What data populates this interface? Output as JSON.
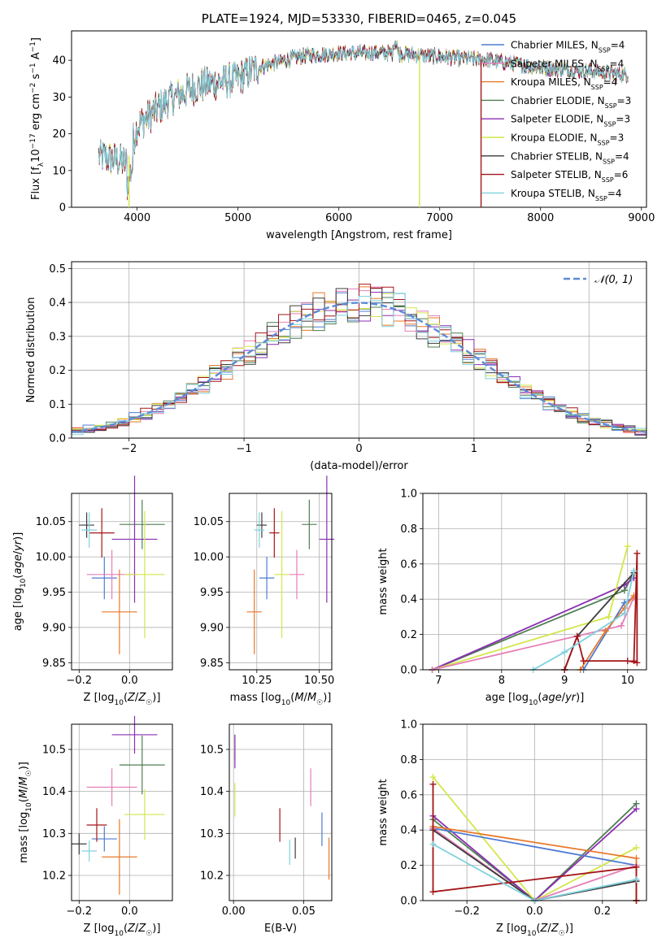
{
  "colors": {
    "Chabrier MILES": "#4f7bd0",
    "Salpeter MILES": "#e57fb8",
    "Kroupa MILES": "#e8782a",
    "Chabrier ELODIE": "#4f7d52",
    "Salpeter ELODIE": "#8b2fb2",
    "Kroupa ELODIE": "#d4e64a",
    "Chabrier STELIB": "#3c3c3c",
    "Salpeter STELIB": "#a31518",
    "Kroupa STELIB": "#7fd2de",
    "normal": "#5b8bd6",
    "dark": "#9b1a14"
  },
  "chart_data": [
    {
      "id": "spectrum",
      "type": "line",
      "title": "PLATE=1924, MJD=53330, FIBERID=0465, z=0.045",
      "xlabel": "wavelength [Angstrom, rest frame]",
      "ylabel_parts": [
        "Flux [f",
        "λ",
        "10",
        "−17",
        " erg cm",
        "−2",
        " s",
        "−1",
        " A",
        "−1",
        "]"
      ],
      "xlim": [
        3350,
        9050
      ],
      "ylim": [
        0,
        48
      ],
      "xticks": [
        4000,
        5000,
        6000,
        7000,
        8000,
        9000
      ],
      "yticks": [
        0,
        10,
        20,
        30,
        40
      ],
      "continuum": {
        "x": [
          3620,
          3900,
          4000,
          4300,
          4600,
          5000,
          5200,
          5600,
          6000,
          6500,
          7000,
          7500,
          8000,
          8500,
          8870
        ],
        "y": [
          14,
          12,
          22,
          29,
          33,
          35,
          38,
          41,
          42,
          42,
          41,
          40,
          38,
          37,
          36
        ]
      },
      "drops": [
        {
          "series": "Kroupa ELODIE",
          "x": 3920
        },
        {
          "series": "Kroupa ELODIE",
          "x": 6800
        },
        {
          "series": "Salpeter STELIB",
          "x": 7410
        }
      ],
      "legend": [
        {
          "name": "Chabrier MILES",
          "n": "4"
        },
        {
          "name": "Salpeter MILES",
          "n": "4"
        },
        {
          "name": "Kroupa MILES",
          "n": "4"
        },
        {
          "name": "Chabrier ELODIE",
          "n": "3"
        },
        {
          "name": "Salpeter ELODIE",
          "n": "3"
        },
        {
          "name": "Kroupa ELODIE",
          "n": "3"
        },
        {
          "name": "Chabrier STELIB",
          "n": "4"
        },
        {
          "name": "Salpeter STELIB",
          "n": "6"
        },
        {
          "name": "Kroupa STELIB",
          "n": "4"
        }
      ],
      "legend_sub": "SSP",
      "legend_placement": "right"
    },
    {
      "id": "residuals",
      "type": "step-histogram",
      "xlabel": "(data-model)/error",
      "ylabel": "Normed distribution",
      "xlim": [
        -2.5,
        2.5
      ],
      "ylim": [
        0,
        0.52
      ],
      "xticks": [
        -2,
        -1,
        0,
        1,
        2
      ],
      "yticks": [
        0.0,
        0.1,
        0.2,
        0.3,
        0.4,
        0.5
      ],
      "bin_width": 0.1,
      "grid": true,
      "legend": "𝒩(0, 1)",
      "legend_placement": "top-right"
    },
    {
      "id": "age_vs_Z",
      "type": "errorbar",
      "xlabel": "Z [log10(Z/Z☉)]",
      "ylabel": "age  [log10(age/yr)]",
      "xlim": [
        -0.23,
        0.17
      ],
      "ylim": [
        9.84,
        10.09
      ],
      "xticks": [
        -0.2,
        0.0
      ],
      "yticks": [
        9.85,
        9.9,
        9.95,
        10.0,
        10.05
      ],
      "grid": true,
      "points": [
        {
          "series": "Chabrier MILES",
          "x": -0.1,
          "xerr": 0.05,
          "y": 9.97,
          "yerr": 0.03
        },
        {
          "series": "Salpeter MILES",
          "x": -0.07,
          "xerr": 0.1,
          "y": 9.975,
          "yerr": 0.035
        },
        {
          "series": "Kroupa MILES",
          "x": -0.04,
          "xerr": 0.07,
          "y": 9.922,
          "yerr": 0.06
        },
        {
          "series": "Chabrier ELODIE",
          "x": 0.05,
          "xerr": 0.09,
          "y": 10.046,
          "yerr": 0.035
        },
        {
          "series": "Salpeter ELODIE",
          "x": 0.02,
          "xerr": 0.09,
          "y": 10.025,
          "yerr": 0.09
        },
        {
          "series": "Kroupa ELODIE",
          "x": 0.06,
          "xerr": 0.08,
          "y": 9.975,
          "yerr": 0.09
        },
        {
          "series": "Chabrier STELIB",
          "x": -0.17,
          "xerr": 0.03,
          "y": 10.045,
          "yerr": 0.018
        },
        {
          "series": "Salpeter STELIB",
          "x": -0.11,
          "xerr": 0.05,
          "y": 10.034,
          "yerr": 0.035
        },
        {
          "series": "Kroupa STELIB",
          "x": -0.16,
          "xerr": 0.03,
          "y": 10.038,
          "yerr": 0.025
        }
      ]
    },
    {
      "id": "age_vs_mass",
      "type": "errorbar",
      "xlabel": "mass [log10(M/M☉)]",
      "xlim": [
        10.14,
        10.55
      ],
      "ylim": [
        9.84,
        10.09
      ],
      "xticks": [
        10.25,
        10.5
      ],
      "yticks": [
        9.85,
        9.9,
        9.95,
        10.0,
        10.05
      ],
      "grid": true,
      "points": [
        {
          "series": "Chabrier MILES",
          "x": 10.29,
          "xerr": 0.03,
          "y": 9.97,
          "yerr": 0.03
        },
        {
          "series": "Salpeter MILES",
          "x": 10.41,
          "xerr": 0.03,
          "y": 9.975,
          "yerr": 0.035
        },
        {
          "series": "Kroupa MILES",
          "x": 10.24,
          "xerr": 0.03,
          "y": 9.922,
          "yerr": 0.06
        },
        {
          "series": "Chabrier ELODIE",
          "x": 10.46,
          "xerr": 0.03,
          "y": 10.046,
          "yerr": 0.035
        },
        {
          "series": "Salpeter ELODIE",
          "x": 10.53,
          "xerr": 0.03,
          "y": 10.025,
          "yerr": 0.09
        },
        {
          "series": "Kroupa ELODIE",
          "x": 10.35,
          "xerr": 0.03,
          "y": 9.975,
          "yerr": 0.09
        },
        {
          "series": "Chabrier STELIB",
          "x": 10.27,
          "xerr": 0.02,
          "y": 10.045,
          "yerr": 0.018
        },
        {
          "series": "Salpeter STELIB",
          "x": 10.32,
          "xerr": 0.02,
          "y": 10.034,
          "yerr": 0.035
        },
        {
          "series": "Kroupa STELIB",
          "x": 10.26,
          "xerr": 0.02,
          "y": 10.038,
          "yerr": 0.025
        }
      ]
    },
    {
      "id": "weight_vs_age",
      "type": "line",
      "xlabel": "age  [log10(age/yr)]",
      "ylabel": "mass weight",
      "xlim": [
        6.75,
        10.3
      ],
      "ylim": [
        0,
        1.0
      ],
      "xticks": [
        7,
        8,
        9,
        10
      ],
      "yticks": [
        0.0,
        0.2,
        0.4,
        0.6,
        0.8,
        1.0
      ],
      "grid": true,
      "series": [
        {
          "name": "Chabrier ELODIE",
          "x": [
            6.9,
            9.95,
            10.1
          ],
          "y": [
            0.0,
            0.45,
            0.55
          ]
        },
        {
          "name": "Salpeter ELODIE",
          "x": [
            6.9,
            9.95,
            10.1
          ],
          "y": [
            0.0,
            0.48,
            0.52
          ]
        },
        {
          "name": "Kroupa ELODIE",
          "x": [
            6.9,
            9.7,
            10.0
          ],
          "y": [
            0.0,
            0.3,
            0.7
          ]
        },
        {
          "name": "Chabrier MILES",
          "x": [
            9.3,
            9.95,
            10.1
          ],
          "y": [
            0.0,
            0.38,
            0.41
          ]
        },
        {
          "name": "Salpeter MILES",
          "x": [
            6.9,
            9.9,
            10.1
          ],
          "y": [
            0.0,
            0.25,
            0.41
          ]
        },
        {
          "name": "Kroupa MILES",
          "x": [
            9.25,
            9.65,
            9.95,
            10.1
          ],
          "y": [
            0.0,
            0.22,
            0.35,
            0.42
          ]
        },
        {
          "name": "Chabrier STELIB",
          "x": [
            9.0,
            9.2,
            10.1
          ],
          "y": [
            0.0,
            0.19,
            0.55
          ]
        },
        {
          "name": "Salpeter STELIB",
          "x": [
            9.0,
            9.2,
            9.3,
            10.0,
            10.15,
            10.15,
            10.1
          ],
          "y": [
            0.0,
            0.19,
            0.05,
            0.05,
            0.04,
            0.66,
            0.05
          ]
        },
        {
          "name": "Kroupa STELIB",
          "x": [
            8.5,
            9.0,
            9.95,
            10.1
          ],
          "y": [
            0.0,
            0.1,
            0.32,
            0.56
          ]
        }
      ]
    },
    {
      "id": "mass_vs_Z",
      "type": "errorbar",
      "xlabel": "Z [log10(Z/Z☉)]",
      "ylabel": "mass [log10(M/M☉)]",
      "xlim": [
        -0.23,
        0.17
      ],
      "ylim": [
        10.14,
        10.56
      ],
      "xticks": [
        -0.2,
        0.0
      ],
      "yticks": [
        10.2,
        10.3,
        10.4,
        10.5
      ],
      "grid": true,
      "points": [
        {
          "series": "Chabrier MILES",
          "x": -0.1,
          "xerr": 0.05,
          "y": 10.287,
          "yerr": 0.03
        },
        {
          "series": "Salpeter MILES",
          "x": -0.07,
          "xerr": 0.1,
          "y": 10.41,
          "yerr": 0.045
        },
        {
          "series": "Kroupa MILES",
          "x": -0.04,
          "xerr": 0.07,
          "y": 10.244,
          "yerr": 0.09
        },
        {
          "series": "Chabrier ELODIE",
          "x": 0.05,
          "xerr": 0.09,
          "y": 10.463,
          "yerr": 0.07
        },
        {
          "series": "Salpeter ELODIE",
          "x": 0.02,
          "xerr": 0.09,
          "y": 10.535,
          "yerr": 0.045
        },
        {
          "series": "Kroupa ELODIE",
          "x": 0.06,
          "xerr": 0.08,
          "y": 10.345,
          "yerr": 0.06
        },
        {
          "series": "Chabrier STELIB",
          "x": -0.2,
          "xerr": 0.03,
          "y": 10.275,
          "yerr": 0.025
        },
        {
          "series": "Salpeter STELIB",
          "x": -0.13,
          "xerr": 0.04,
          "y": 10.32,
          "yerr": 0.04
        },
        {
          "series": "Kroupa STELIB",
          "x": -0.16,
          "xerr": 0.03,
          "y": 10.258,
          "yerr": 0.025
        }
      ]
    },
    {
      "id": "mass_vs_EBV",
      "type": "errorbar",
      "xlabel": "E(B-V)",
      "xlim": [
        -0.003,
        0.07
      ],
      "ylim": [
        10.14,
        10.56
      ],
      "xticks": [
        0.0,
        0.05
      ],
      "yticks": [
        10.2,
        10.3,
        10.4,
        10.5
      ],
      "grid": true,
      "points": [
        {
          "series": "Chabrier MILES",
          "x": 0.063,
          "y": 10.31,
          "yerr": 0.04
        },
        {
          "series": "Salpeter MILES",
          "x": 0.055,
          "y": 10.41,
          "yerr": 0.045
        },
        {
          "series": "Kroupa MILES",
          "x": 0.068,
          "y": 10.24,
          "yerr": 0.05
        },
        {
          "series": "Chabrier ELODIE",
          "x": 0.001,
          "y": 10.505,
          "yerr": 0.03
        },
        {
          "series": "Salpeter ELODIE",
          "x": 0.001,
          "y": 10.495,
          "yerr": 0.04
        },
        {
          "series": "Kroupa ELODIE",
          "x": 0.001,
          "y": 10.38,
          "yerr": 0.04
        },
        {
          "series": "Chabrier STELIB",
          "x": 0.044,
          "y": 10.265,
          "yerr": 0.025
        },
        {
          "series": "Salpeter STELIB",
          "x": 0.033,
          "y": 10.32,
          "yerr": 0.04
        },
        {
          "series": "Kroupa STELIB",
          "x": 0.04,
          "y": 10.255,
          "yerr": 0.03
        }
      ]
    },
    {
      "id": "weight_vs_Z",
      "type": "line",
      "xlabel": "Z [log10(Z/Z☉)]",
      "ylabel": "mass weight",
      "xlim": [
        -0.33,
        0.33
      ],
      "ylim": [
        0,
        1.0
      ],
      "xticks": [
        -0.2,
        0.0,
        0.2
      ],
      "yticks": [
        0.0,
        0.2,
        0.4,
        0.6,
        0.8,
        1.0
      ],
      "grid": true,
      "series": [
        {
          "name": "Chabrier ELODIE",
          "x": [
            -0.3,
            0.0,
            0.3
          ],
          "y": [
            0.46,
            0.0,
            0.55
          ]
        },
        {
          "name": "Salpeter ELODIE",
          "x": [
            -0.3,
            0.0,
            0.3
          ],
          "y": [
            0.48,
            0.0,
            0.52
          ]
        },
        {
          "name": "Kroupa ELODIE",
          "x": [
            -0.3,
            0.0,
            0.3
          ],
          "y": [
            0.7,
            0.0,
            0.3
          ]
        },
        {
          "name": "Chabrier MILES",
          "x": [
            -0.3,
            0.3,
            0.3
          ],
          "y": [
            0.41,
            0.2,
            0.0
          ]
        },
        {
          "name": "Salpeter MILES",
          "x": [
            -0.3,
            0.0,
            0.3
          ],
          "y": [
            0.41,
            0.0,
            0.2
          ]
        },
        {
          "name": "Kroupa MILES",
          "x": [
            -0.3,
            0.3,
            0.3
          ],
          "y": [
            0.42,
            0.24,
            0.0
          ]
        },
        {
          "name": "Chabrier STELIB",
          "x": [
            -0.3,
            0.0,
            0.3
          ],
          "y": [
            0.4,
            0.0,
            0.11
          ]
        },
        {
          "name": "Salpeter STELIB",
          "x": [
            -0.3,
            -0.3,
            0.3,
            0.3
          ],
          "y": [
            0.66,
            0.05,
            0.19,
            0.0
          ]
        },
        {
          "name": "Kroupa STELIB",
          "x": [
            -0.3,
            0.0,
            0.3
          ],
          "y": [
            0.32,
            0.0,
            0.12
          ]
        }
      ]
    }
  ]
}
